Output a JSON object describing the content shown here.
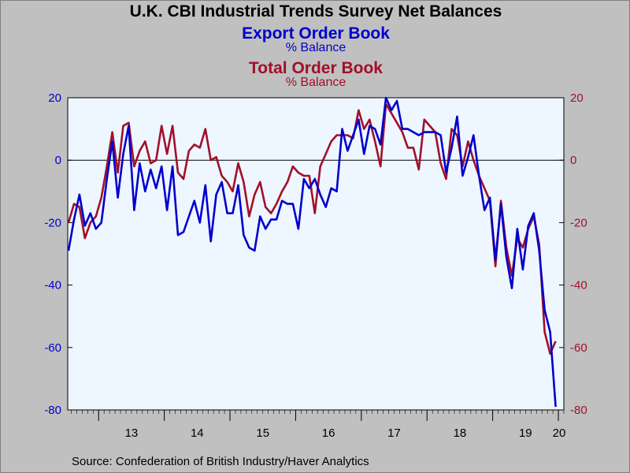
{
  "title": "U.K. CBI Industrial Trends Survey Net Balances",
  "series_labels": [
    {
      "name": "Export Order Book",
      "unit": "% Balance"
    },
    {
      "name": "Total Order Book",
      "unit": "% Balance"
    }
  ],
  "source": "Source:  Confederation of British Industry/Haver Analytics",
  "colors": {
    "export": "#0000cc",
    "total": "#a0102a",
    "plot_bg": "#eef6ff",
    "page_bg": "#c0c0c0"
  },
  "chart_data": {
    "type": "line",
    "x_start": "2012-07",
    "frequency": "monthly",
    "x_tick_labels": [
      "13",
      "14",
      "15",
      "16",
      "17",
      "18",
      "19",
      "20"
    ],
    "ylim": [
      -80,
      20
    ],
    "y_ticks": [
      20,
      0,
      -20,
      -40,
      -60,
      -80
    ],
    "y_axis_right": true,
    "zero_line": true,
    "series": [
      {
        "name": "Export Order Book",
        "values": [
          -29,
          -19,
          -11,
          -21,
          -17,
          -22,
          -20,
          -6,
          6,
          -12,
          2,
          11,
          -16,
          -1,
          -10,
          -3,
          -9,
          -2,
          -16,
          -2,
          -24,
          -23,
          -18,
          -13,
          -20,
          -8,
          -26,
          -11,
          -7,
          -17,
          -17,
          -8,
          -24,
          -28,
          -29,
          -18,
          -22,
          -19,
          -19,
          -13,
          -14,
          -14,
          -22,
          -6,
          -9,
          -6,
          -11,
          -15,
          -9,
          -10,
          10,
          3,
          8,
          13,
          2,
          11,
          10,
          5,
          20,
          16,
          19,
          10,
          10,
          9,
          8,
          9,
          9,
          9,
          8,
          -4,
          4,
          14,
          -5,
          1,
          8,
          -5,
          -16,
          -12,
          -32,
          -14,
          -31,
          -41,
          -22,
          -35,
          -21,
          -17,
          -29,
          -48,
          -55,
          -79
        ]
      },
      {
        "name": "Total Order Book",
        "values": [
          -20,
          -14,
          -15,
          -25,
          -20,
          -18,
          -12,
          -2,
          9,
          -4,
          11,
          12,
          -2,
          3,
          6,
          -1,
          0,
          11,
          2,
          11,
          -4,
          -6,
          3,
          5,
          4,
          10,
          0,
          1,
          -5,
          -7,
          -10,
          -1,
          -7,
          -18,
          -11,
          -7,
          -15,
          -17,
          -14,
          -10,
          -7,
          -2,
          -4,
          -5,
          -5,
          -17,
          -2,
          2,
          6,
          8,
          8,
          8,
          7,
          16,
          10,
          13,
          6,
          -2,
          18,
          15,
          12,
          9,
          4,
          4,
          -3,
          13,
          11,
          9,
          -1,
          -6,
          10,
          8,
          -2,
          6,
          0,
          -5,
          -9,
          -13,
          -34,
          -13,
          -28,
          -37,
          -25,
          -28,
          -22,
          -18,
          -27,
          -55,
          -62,
          -58
        ]
      }
    ]
  }
}
